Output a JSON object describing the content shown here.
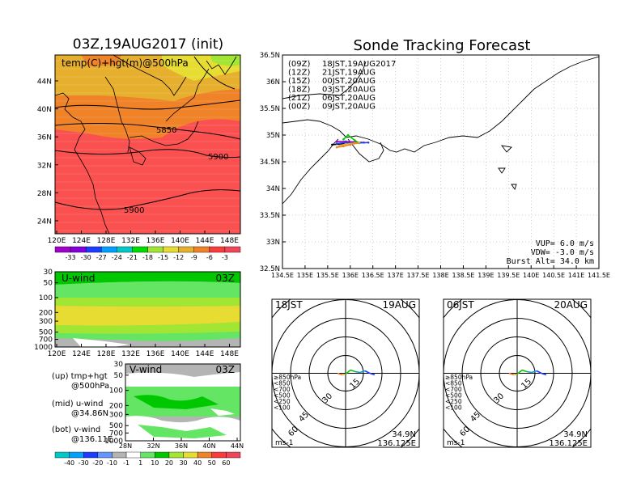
{
  "left": {
    "title": "03Z,19AUG2017 (init)",
    "map_label": "temp(C)+hgt(m)@500hPa",
    "lat_ticks": [
      "44N",
      "40N",
      "36N",
      "32N",
      "28N",
      "24N"
    ],
    "lon_ticks": [
      "120E",
      "124E",
      "128E",
      "132E",
      "136E",
      "140E",
      "144E",
      "148E"
    ],
    "contours": [
      "5850",
      "5900",
      "5900"
    ],
    "temp_colorbar": [
      "-33",
      "-30",
      "-27",
      "-24",
      "-21",
      "-18",
      "-15",
      "-12",
      "-9",
      "-6",
      "-3"
    ],
    "u_panel_label": "U-wind",
    "v_panel_label": "V-wind",
    "time_label": "03Z",
    "p_ticks": [
      "30",
      "50",
      "100",
      "200",
      "300",
      "500",
      "700",
      "1000"
    ],
    "v_x_ticks": [
      "28N",
      "32N",
      "36N",
      "40N",
      "44N"
    ],
    "notes": [
      [
        "(up) tmp+hgt",
        "@500hPa"
      ],
      [
        "(mid) u-wind",
        "@34.86N"
      ],
      [
        "(bot) v-wind",
        "@136.11E"
      ]
    ],
    "wind_colorbar": [
      "-40",
      "-30",
      "-20",
      "-10",
      "-1",
      "1",
      "10",
      "20",
      "30",
      "40",
      "50",
      "60"
    ]
  },
  "right": {
    "title": "Sonde Tracking Forecast",
    "lat_ticks": [
      "36.5N",
      "36N",
      "35.5N",
      "35N",
      "34.5N",
      "34N",
      "33.5N",
      "33N",
      "32.5N"
    ],
    "lon_ticks": [
      "134.5E",
      "135E",
      "135.5E",
      "136E",
      "136.5E",
      "137E",
      "137.5E",
      "138E",
      "138.5E",
      "139E",
      "139.5E",
      "140E",
      "140.5E",
      "141E",
      "141.5E"
    ],
    "legend": [
      {
        "z": "(09Z)",
        "t": "18JST,19AUG2017",
        "color": "#000000"
      },
      {
        "z": "(12Z)",
        "t": "21JST,19AUG",
        "color": "#a000c0"
      },
      {
        "z": "(15Z)",
        "t": "00JST,20AUG",
        "color": "#1e3cff"
      },
      {
        "z": "(18Z)",
        "t": "03JST,20AUG",
        "color": "#00c800"
      },
      {
        "z": "(21Z)",
        "t": "06JST,20AUG",
        "color": "#e6af2d"
      },
      {
        "z": "(00Z)",
        "t": "09JST,20AUG",
        "color": "#f08228"
      }
    ],
    "params": [
      "VUP=  6.0 m/s",
      "VDW= -3.0 m/s",
      "Burst Alt= 34.0 km"
    ],
    "hodo": [
      {
        "time": "18JST",
        "date": "19AUG",
        "lat": "34.9N",
        "lon": "136.125E",
        "unit": "ms-1",
        "rings": [
          "15",
          "30",
          "45",
          "60"
        ],
        "pressure_legend": [
          {
            "t": "≥850hPa",
            "c": "#e01e1e"
          },
          {
            "t": "<850",
            "c": "#f08228"
          },
          {
            "t": "<700",
            "c": "#e6af2d"
          },
          {
            "t": "<500",
            "c": "#00c800"
          },
          {
            "t": "<250",
            "c": "#00a0c8"
          },
          {
            "t": "<100",
            "c": "#1e3cff"
          }
        ]
      },
      {
        "time": "06JST",
        "date": "20AUG",
        "lat": "34.9N",
        "lon": "136.125E",
        "unit": "ms-1",
        "rings": [
          "15",
          "30",
          "45",
          "60"
        ],
        "pressure_legend": [
          {
            "t": "≥850hPa",
            "c": "#e01e1e"
          },
          {
            "t": "<850",
            "c": "#f08228"
          },
          {
            "t": "<700",
            "c": "#e6af2d"
          },
          {
            "t": "<500",
            "c": "#00c800"
          },
          {
            "t": "<250",
            "c": "#00a0c8"
          },
          {
            "t": "<100",
            "c": "#1e3cff"
          }
        ]
      }
    ]
  },
  "colors": {
    "temp_scale": [
      "#a000c8",
      "#8200dc",
      "#1e3cff",
      "#00a0ff",
      "#00c8c8",
      "#00dc00",
      "#a0e632",
      "#e6dc32",
      "#e6af2d",
      "#f08228",
      "#fa3c3c",
      "#f0465a"
    ],
    "wind_scale": [
      "#00c8c8",
      "#00a0ff",
      "#1e3cff",
      "#6496ff",
      "#b4b4b4",
      "#ffffff",
      "#64e664",
      "#00c800",
      "#a0e632",
      "#e6dc32",
      "#f08228",
      "#fa3c3c",
      "#f0465a"
    ]
  },
  "chart_data": [
    {
      "type": "heatmap",
      "title": "03Z,19AUG2017 (init)",
      "label": "temp(C)+hgt(m)@500hPa",
      "xlim": [
        120,
        150
      ],
      "ylim": [
        22,
        47
      ],
      "contours": [
        {
          "label": "5850"
        },
        {
          "label": "5900"
        }
      ]
    },
    {
      "type": "line",
      "title": "Sonde Tracking Forecast",
      "xlim": [
        134.5,
        141.5
      ],
      "ylim": [
        32.5,
        36.5
      ],
      "series": [
        {
          "name": "(09Z)",
          "x": [
            135.6,
            135.85,
            136.0,
            136.1
          ],
          "y": [
            34.82,
            34.84,
            34.85,
            34.85
          ]
        },
        {
          "name": "(12Z)",
          "x": [
            135.7,
            135.9,
            136.1,
            136.3
          ],
          "y": [
            34.88,
            34.88,
            34.87,
            34.86
          ]
        },
        {
          "name": "(15Z)",
          "x": [
            135.7,
            135.9,
            136.1,
            136.4
          ],
          "y": [
            34.84,
            34.86,
            34.85,
            34.86
          ]
        },
        {
          "name": "(18Z)",
          "x": [
            135.85,
            135.95,
            136.1,
            136.2
          ],
          "y": [
            34.92,
            35.0,
            34.9,
            34.85
          ]
        },
        {
          "name": "(21Z)",
          "x": [
            135.75,
            135.9,
            136.1,
            136.2
          ],
          "y": [
            34.8,
            34.83,
            34.85,
            34.86
          ]
        },
        {
          "name": "(00Z)",
          "x": [
            135.7,
            135.85,
            136.0,
            136.15
          ],
          "y": [
            34.77,
            34.79,
            34.82,
            34.85
          ]
        }
      ]
    }
  ]
}
